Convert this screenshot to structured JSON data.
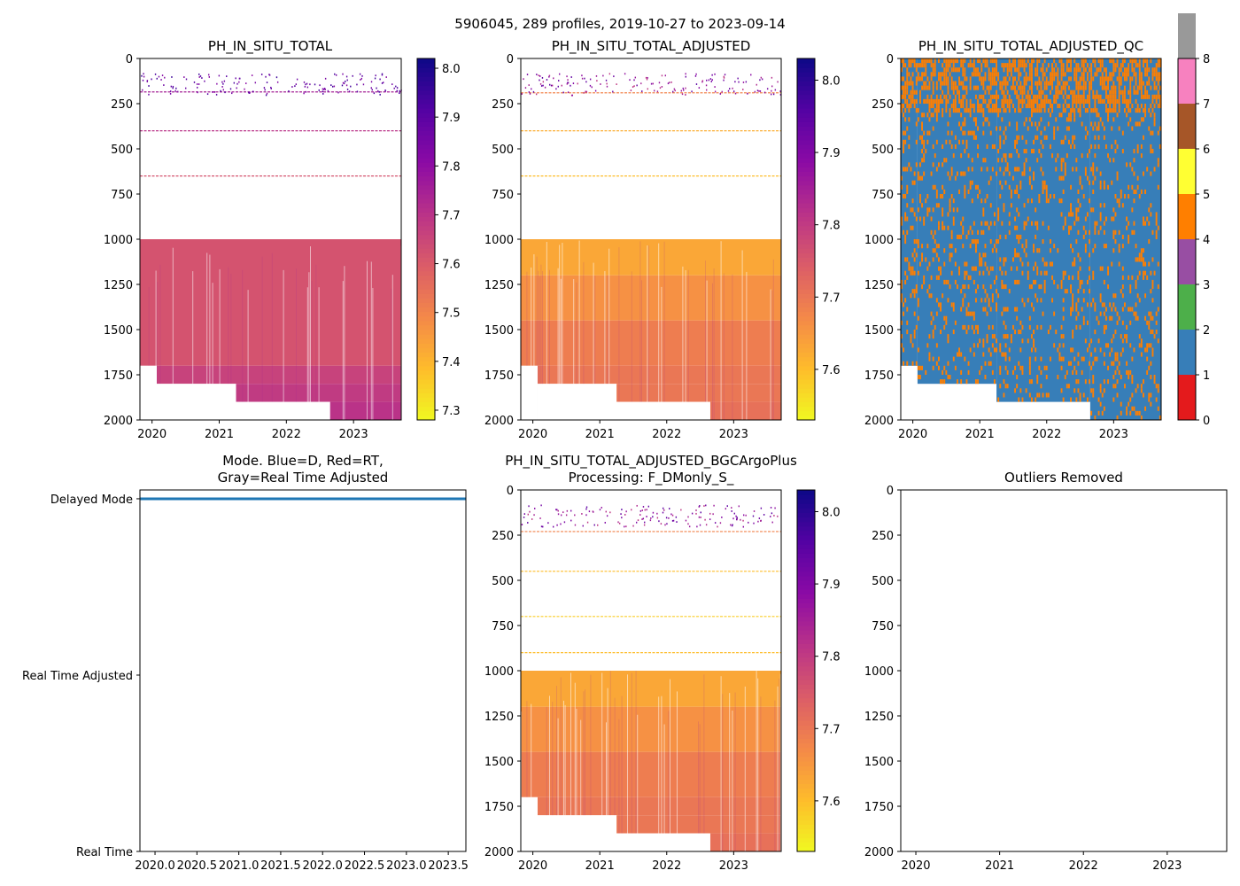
{
  "figure": {
    "suptitle": "5906045, 289 profiles, 2019-10-27 to 2023-09-14"
  },
  "chart_data": [
    {
      "id": "raw",
      "type": "heatmap",
      "title": "PH_IN_SITU_TOTAL",
      "ylim": [
        2000,
        0
      ],
      "yticks": [
        "0",
        "250",
        "500",
        "750",
        "1000",
        "1250",
        "1500",
        "1750",
        "2000"
      ],
      "ytick_values": [
        0,
        250,
        500,
        750,
        1000,
        1250,
        1500,
        1750,
        2000
      ],
      "xlim": [
        2019.82,
        2023.71
      ],
      "xticks": [
        "2020",
        "2021",
        "2022",
        "2023"
      ],
      "xtick_values": [
        2020,
        2021,
        2022,
        2023
      ],
      "colormap": "plasma_r",
      "colorbar": {
        "min": 7.28,
        "max": 8.02,
        "ticks": [
          "7.3",
          "7.4",
          "7.5",
          "7.6",
          "7.7",
          "7.8",
          "7.9",
          "8.0"
        ],
        "tick_values": [
          7.3,
          7.4,
          7.5,
          7.6,
          7.7,
          7.8,
          7.9,
          8.0
        ]
      },
      "bands": [
        {
          "depth_top": 1000,
          "depth_bottom": 1700,
          "value": 7.62,
          "x_end": 2023.71
        },
        {
          "depth_top": 1700,
          "depth_bottom": 1800,
          "value": 7.66,
          "x_start": 2020.07,
          "x_end": 2023.71
        },
        {
          "depth_top": 1800,
          "depth_bottom": 1900,
          "value": 7.68,
          "x_start": 2021.25,
          "x_end": 2023.71
        },
        {
          "depth_top": 1900,
          "depth_bottom": 2000,
          "value": 7.7,
          "x_start": 2022.65,
          "x_end": 2023.71
        }
      ],
      "lines": [
        {
          "depth": 185,
          "value": 7.75
        },
        {
          "depth": 400,
          "value": 7.7
        },
        {
          "depth": 650,
          "value": 7.62
        }
      ]
    },
    {
      "id": "adjusted",
      "type": "heatmap",
      "title": "PH_IN_SITU_TOTAL_ADJUSTED",
      "ylim": [
        2000,
        0
      ],
      "yticks": [
        "0",
        "250",
        "500",
        "750",
        "1000",
        "1250",
        "1500",
        "1750",
        "2000"
      ],
      "ytick_values": [
        0,
        250,
        500,
        750,
        1000,
        1250,
        1500,
        1750,
        2000
      ],
      "xlim": [
        2019.82,
        2023.71
      ],
      "xticks": [
        "2020",
        "2021",
        "2022",
        "2023"
      ],
      "xtick_values": [
        2020,
        2021,
        2022,
        2023
      ],
      "colormap": "plasma_r",
      "colorbar": {
        "min": 7.53,
        "max": 8.03,
        "ticks": [
          "7.6",
          "7.7",
          "7.8",
          "7.9",
          "8.0"
        ],
        "tick_values": [
          7.6,
          7.7,
          7.8,
          7.9,
          8.0
        ]
      },
      "bands": [
        {
          "depth_top": 1000,
          "depth_bottom": 1200,
          "value": 7.63
        },
        {
          "depth_top": 1200,
          "depth_bottom": 1450,
          "value": 7.66
        },
        {
          "depth_top": 1450,
          "depth_bottom": 1700,
          "value": 7.69
        },
        {
          "depth_top": 1700,
          "depth_bottom": 1800,
          "value": 7.7,
          "x_start": 2020.07
        },
        {
          "depth_top": 1800,
          "depth_bottom": 1900,
          "value": 7.7,
          "x_start": 2021.25
        },
        {
          "depth_top": 1900,
          "depth_bottom": 2000,
          "value": 7.71,
          "x_start": 2022.65
        }
      ],
      "lines": [
        {
          "depth": 190,
          "value": 7.68
        },
        {
          "depth": 400,
          "value": 7.62
        },
        {
          "depth": 650,
          "value": 7.6
        }
      ]
    },
    {
      "id": "qc",
      "type": "heatmap",
      "title": "PH_IN_SITU_TOTAL_ADJUSTED_QC",
      "ylim": [
        2000,
        0
      ],
      "yticks": [
        "0",
        "250",
        "500",
        "750",
        "1000",
        "1250",
        "1500",
        "1750",
        "2000"
      ],
      "ytick_values": [
        0,
        250,
        500,
        750,
        1000,
        1250,
        1500,
        1750,
        2000
      ],
      "xlim": [
        2019.82,
        2023.71
      ],
      "xticks": [
        "2020",
        "2021",
        "2022",
        "2023"
      ],
      "xtick_values": [
        2020,
        2021,
        2022,
        2023
      ],
      "colorbar": {
        "min": 0,
        "max": 8,
        "ticks": [
          "0",
          "1",
          "2",
          "3",
          "4",
          "5",
          "6",
          "7",
          "8"
        ],
        "tick_values": [
          0,
          1,
          2,
          3,
          4,
          5,
          6,
          7,
          8
        ],
        "categories": [
          "#e41a1c",
          "#377eb8",
          "#4daf4a",
          "#984ea3",
          "#ff7f00",
          "#ffff33",
          "#a65628",
          "#f781bf",
          "#999999"
        ]
      },
      "base_flag": 1,
      "secondary_flag": 4,
      "extent_steps": [
        {
          "x_start": 2019.82,
          "depth_bottom": 1700
        },
        {
          "x_start": 2020.07,
          "depth_bottom": 1800
        },
        {
          "x_start": 2021.25,
          "depth_bottom": 1900
        },
        {
          "x_start": 2022.65,
          "depth_bottom": 2000
        }
      ]
    },
    {
      "id": "mode",
      "type": "line",
      "title": "Mode. Blue=D, Red=RT,",
      "title_line2": "Gray=Real Time Adjusted",
      "xlim": [
        2019.82,
        2023.71
      ],
      "xticks": [
        "2020.0",
        "2020.5",
        "2021.0",
        "2021.5",
        "2022.0",
        "2022.5",
        "2023.0",
        "2023.5"
      ],
      "xtick_values": [
        2020.0,
        2020.5,
        2021.0,
        2021.5,
        2022.0,
        2022.5,
        2023.0,
        2023.5
      ],
      "ylim": [
        0,
        2.05
      ],
      "ytick_labels": [
        "Real Time",
        "Real Time Adjusted",
        "Delayed Mode"
      ],
      "ytick_values": [
        0,
        1,
        2
      ],
      "series": [
        {
          "name": "Delayed Mode",
          "color": "#1f77b4",
          "x": [
            2019.82,
            2023.71
          ],
          "y": [
            2,
            2
          ]
        }
      ]
    },
    {
      "id": "bgc",
      "type": "heatmap",
      "title": "PH_IN_SITU_TOTAL_ADJUSTED_BGCArgoPlus",
      "title_line2": "Processing: F_DMonly_S_",
      "ylim": [
        2000,
        0
      ],
      "yticks": [
        "0",
        "250",
        "500",
        "750",
        "1000",
        "1250",
        "1500",
        "1750",
        "2000"
      ],
      "ytick_values": [
        0,
        250,
        500,
        750,
        1000,
        1250,
        1500,
        1750,
        2000
      ],
      "xlim": [
        2019.82,
        2023.71
      ],
      "xticks": [
        "2020",
        "2021",
        "2022",
        "2023"
      ],
      "xtick_values": [
        2020,
        2021,
        2022,
        2023
      ],
      "colormap": "plasma_r",
      "colorbar": {
        "min": 7.53,
        "max": 8.03,
        "ticks": [
          "7.6",
          "7.7",
          "7.8",
          "7.9",
          "8.0"
        ],
        "tick_values": [
          7.6,
          7.7,
          7.8,
          7.9,
          8.0
        ]
      },
      "bands": [
        {
          "depth_top": 1000,
          "depth_bottom": 1200,
          "value": 7.63
        },
        {
          "depth_top": 1200,
          "depth_bottom": 1450,
          "value": 7.66
        },
        {
          "depth_top": 1450,
          "depth_bottom": 1700,
          "value": 7.69
        },
        {
          "depth_top": 1700,
          "depth_bottom": 1800,
          "value": 7.7,
          "x_start": 2020.07
        },
        {
          "depth_top": 1800,
          "depth_bottom": 1900,
          "value": 7.7,
          "x_start": 2021.25
        },
        {
          "depth_top": 1900,
          "depth_bottom": 2000,
          "value": 7.71,
          "x_start": 2022.65
        }
      ],
      "lines": [
        {
          "depth": 230,
          "value": 7.68
        },
        {
          "depth": 450,
          "value": 7.6
        },
        {
          "depth": 700,
          "value": 7.58
        },
        {
          "depth": 900,
          "value": 7.6
        }
      ]
    },
    {
      "id": "outliers",
      "type": "scatter",
      "title": "Outliers Removed",
      "ylim": [
        2000,
        0
      ],
      "yticks": [
        "0",
        "250",
        "500",
        "750",
        "1000",
        "1250",
        "1500",
        "1750",
        "2000"
      ],
      "ytick_values": [
        0,
        250,
        500,
        750,
        1000,
        1250,
        1500,
        1750,
        2000
      ],
      "xlim": [
        2019.82,
        2023.71
      ],
      "xticks": [
        "2020",
        "2021",
        "2022",
        "2023"
      ],
      "xtick_values": [
        2020,
        2021,
        2022,
        2023
      ],
      "points": []
    }
  ]
}
